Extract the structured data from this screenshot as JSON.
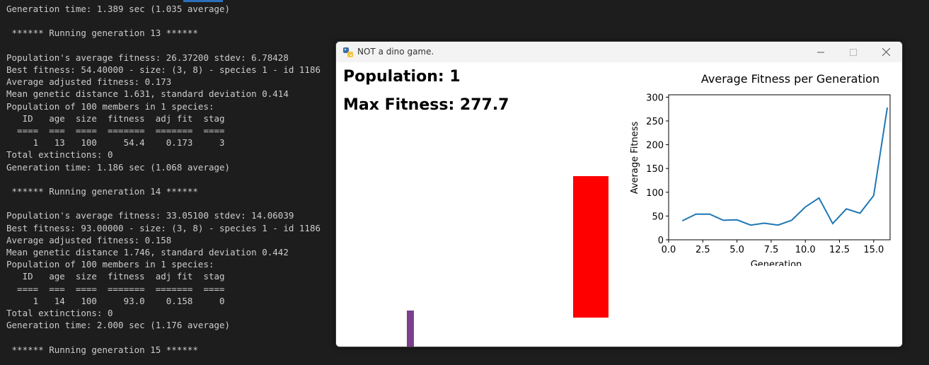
{
  "terminal": {
    "lines": [
      "Generation time: 1.389 sec (1.035 average)",
      "",
      " ****** Running generation 13 ******",
      "",
      "Population's average fitness: 26.37200 stdev: 6.78428",
      "Best fitness: 54.40000 - size: (3, 8) - species 1 - id 1186",
      "Average adjusted fitness: 0.173",
      "Mean genetic distance 1.631, standard deviation 0.414",
      "Population of 100 members in 1 species:",
      "   ID   age  size  fitness  adj fit  stag",
      "  ====  ===  ====  =======  =======  ====",
      "     1   13   100     54.4    0.173     3",
      "Total extinctions: 0",
      "Generation time: 1.186 sec (1.068 average)",
      "",
      " ****** Running generation 14 ******",
      "",
      "Population's average fitness: 33.05100 stdev: 14.06039",
      "Best fitness: 93.00000 - size: (3, 8) - species 1 - id 1186",
      "Average adjusted fitness: 0.158",
      "Mean genetic distance 1.746, standard deviation 0.442",
      "Population of 100 members in 1 species:",
      "   ID   age  size  fitness  adj fit  stag",
      "  ====  ===  ====  =======  =======  ====",
      "     1   14   100     93.0    0.158     0",
      "Total extinctions: 0",
      "Generation time: 2.000 sec (1.176 average)",
      "",
      " ****** Running generation 15 ******"
    ]
  },
  "window": {
    "title": "NOT a dino game.",
    "app_icon": "python-snake-icon",
    "controls": {
      "minimize": "minimize-icon",
      "maximize": "maximize-icon",
      "close": "close-icon"
    }
  },
  "game": {
    "population_text": "Population: 1",
    "max_fitness_text": "Max Fitness: 277.7",
    "obstacle_color": "#ff0000",
    "player_color": "#7b3f8c"
  },
  "chart_data": {
    "type": "line",
    "title": "Average Fitness per Generation",
    "xlabel": "Generation",
    "ylabel": "Average Fitness",
    "xlim": [
      0,
      16.2
    ],
    "ylim": [
      0,
      305
    ],
    "xticks": [
      0.0,
      2.5,
      5.0,
      7.5,
      10.0,
      12.5,
      15.0
    ],
    "xtick_labels": [
      "0.0",
      "2.5",
      "5.0",
      "7.5",
      "10.0",
      "12.5",
      "15.0"
    ],
    "yticks": [
      0,
      50,
      100,
      150,
      200,
      250,
      300
    ],
    "ytick_labels": [
      "0",
      "50",
      "100",
      "150",
      "200",
      "250",
      "300"
    ],
    "grid": false,
    "line_color": "#1f77b4",
    "series": [
      {
        "x": [
          1,
          2,
          3,
          4,
          5,
          6,
          7,
          8,
          9,
          10,
          11,
          12,
          13,
          14,
          15,
          16
        ],
        "values": [
          40,
          54,
          54,
          41,
          42,
          31,
          35,
          31,
          41,
          69,
          88,
          34,
          65,
          56,
          93,
          278
        ]
      }
    ]
  }
}
